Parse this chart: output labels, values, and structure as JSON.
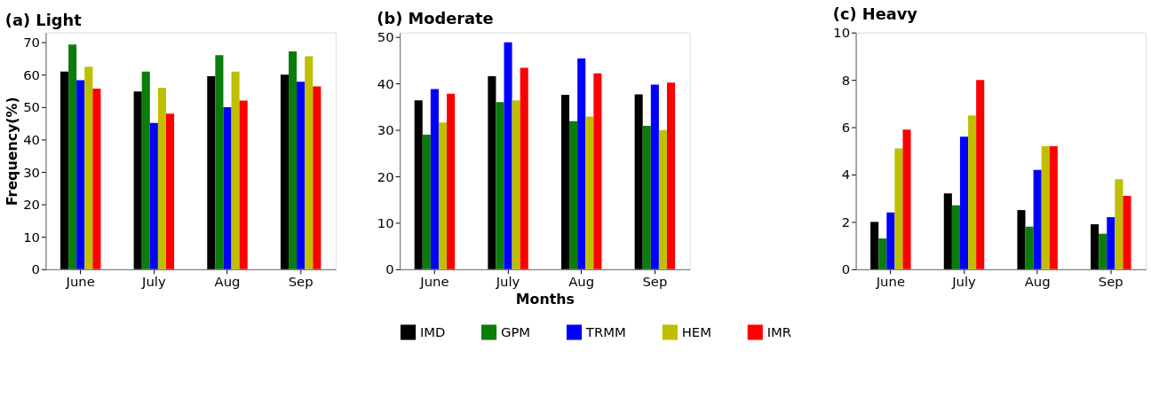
{
  "chart_data": [
    {
      "type": "bar",
      "title": "(a) Light",
      "ylabel": "Frequency(%)",
      "categories": [
        "June",
        "July",
        "Aug",
        "Sep"
      ],
      "ylim": [
        0,
        73
      ],
      "yticks": [
        0,
        10,
        20,
        30,
        40,
        50,
        60,
        70
      ],
      "grid": false,
      "series": [
        {
          "color": "#000000",
          "values": [
            61,
            54.8,
            59.5,
            60
          ]
        },
        {
          "color": "#0a7d0a",
          "values": [
            69.3,
            61,
            66,
            67.2
          ]
        },
        {
          "color": "#0000ff",
          "values": [
            58.3,
            45.1,
            50,
            57.8
          ]
        },
        {
          "color": "#bfbf00",
          "values": [
            62.5,
            56,
            61,
            65.7
          ]
        },
        {
          "color": "#ff0000",
          "values": [
            55.7,
            48,
            52,
            56.4
          ]
        }
      ]
    },
    {
      "type": "bar",
      "title": "(b) Moderate",
      "xlabel": "Months",
      "categories": [
        "June",
        "July",
        "Aug",
        "Sep"
      ],
      "ylim": [
        0,
        51
      ],
      "yticks": [
        0,
        10,
        20,
        30,
        40,
        50
      ],
      "grid": false,
      "legend": "bottom",
      "series": [
        {
          "name": "IMD",
          "color": "#000000",
          "values": [
            36.4,
            41.6,
            37.6,
            37.7
          ]
        },
        {
          "name": "GPM",
          "color": "#0a7d0a",
          "values": [
            29,
            36,
            31.9,
            30.9
          ]
        },
        {
          "name": "TRMM",
          "color": "#0000ff",
          "values": [
            38.8,
            48.9,
            45.4,
            39.8
          ]
        },
        {
          "name": "HEM",
          "color": "#bfbf00",
          "values": [
            31.6,
            36.4,
            32.9,
            30
          ]
        },
        {
          "name": "IMR",
          "color": "#ff0000",
          "values": [
            37.8,
            43.4,
            42.2,
            40.2
          ]
        }
      ]
    },
    {
      "type": "bar",
      "title": "(c) Heavy",
      "categories": [
        "June",
        "July",
        "Aug",
        "Sep"
      ],
      "ylim": [
        0,
        10
      ],
      "yticks": [
        0,
        2,
        4,
        6,
        8,
        10
      ],
      "grid": false,
      "series": [
        {
          "color": "#000000",
          "values": [
            2.0,
            3.2,
            2.5,
            1.9
          ]
        },
        {
          "color": "#0a7d0a",
          "values": [
            1.3,
            2.7,
            1.8,
            1.5
          ]
        },
        {
          "color": "#0000ff",
          "values": [
            2.4,
            5.6,
            4.2,
            2.2
          ]
        },
        {
          "color": "#bfbf00",
          "values": [
            5.1,
            6.5,
            5.2,
            3.8
          ]
        },
        {
          "color": "#ff0000",
          "values": [
            5.9,
            8.0,
            5.2,
            3.1
          ]
        }
      ]
    }
  ]
}
